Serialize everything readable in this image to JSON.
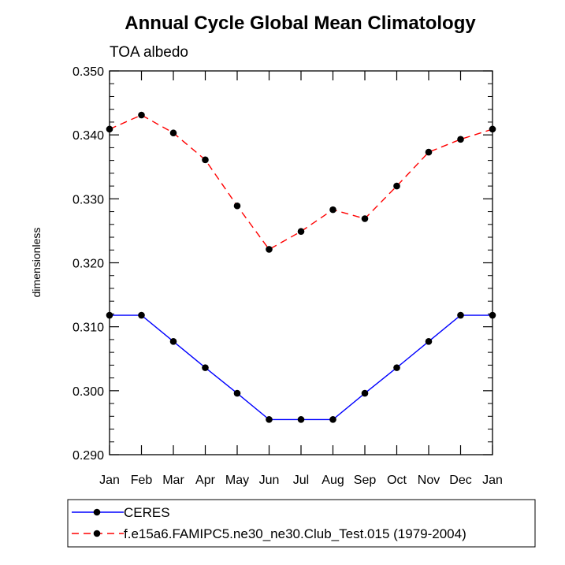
{
  "chart_data": {
    "type": "line",
    "title": "Annual Cycle Global Mean Climatology",
    "subtitle": "TOA albedo",
    "xlabel": "",
    "ylabel": "dimensionless",
    "categories": [
      "Jan",
      "Feb",
      "Mar",
      "Apr",
      "May",
      "Jun",
      "Jul",
      "Aug",
      "Sep",
      "Oct",
      "Nov",
      "Dec",
      "Jan"
    ],
    "ylim": [
      0.29,
      0.35
    ],
    "yticks": [
      "0.290",
      "0.300",
      "0.310",
      "0.320",
      "0.330",
      "0.340",
      "0.350"
    ],
    "series": [
      {
        "name": "CERES",
        "color": "#0000ff",
        "dash": "solid",
        "values": [
          0.3118,
          0.3118,
          0.3077,
          0.3036,
          0.2996,
          0.2955,
          0.2955,
          0.2955,
          0.2996,
          0.3036,
          0.3077,
          0.3118,
          0.3118
        ]
      },
      {
        "name": "f.e15a6.FAMIPC5.ne30_ne30.Club_Test.015 (1979-2004)",
        "color": "#ff0000",
        "dash": "dashed",
        "values": [
          0.3409,
          0.3431,
          0.3403,
          0.3361,
          0.3289,
          0.3221,
          0.3249,
          0.3283,
          0.3269,
          0.332,
          0.3373,
          0.3393,
          0.3409
        ]
      }
    ],
    "legend_position": "bottom"
  }
}
